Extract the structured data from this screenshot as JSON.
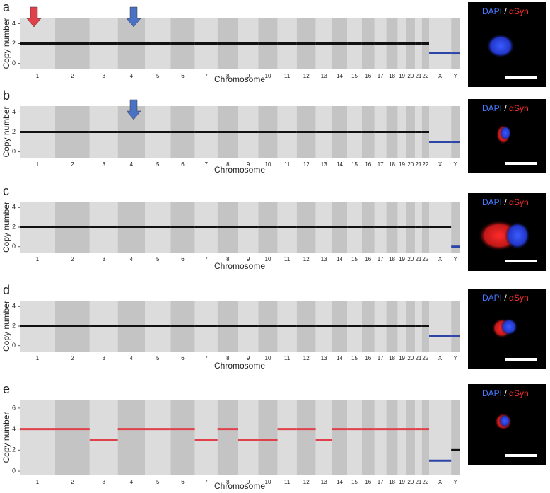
{
  "chart_data": [
    {
      "type": "segment",
      "label": "a",
      "ylabel": "Copy number",
      "xlabel": "Chromosome",
      "categories": [
        "1",
        "2",
        "3",
        "4",
        "5",
        "6",
        "7",
        "8",
        "9",
        "10",
        "11",
        "12",
        "13",
        "14",
        "15",
        "16",
        "17",
        "18",
        "19",
        "20",
        "21",
        "22",
        "X",
        "Y"
      ],
      "ylim": [
        -0.6,
        4.6
      ],
      "yticks": [
        0,
        2,
        4
      ],
      "series": [
        {
          "color": "#111111",
          "values": [
            2,
            2,
            2,
            2,
            2,
            2,
            2,
            2,
            2,
            2,
            2,
            2,
            2,
            2,
            2,
            2,
            2,
            2,
            2,
            2,
            2,
            2,
            null,
            null
          ]
        },
        {
          "color": "#2e45a8",
          "values": [
            null,
            null,
            null,
            null,
            null,
            null,
            null,
            null,
            null,
            null,
            null,
            null,
            null,
            null,
            null,
            null,
            null,
            null,
            null,
            null,
            null,
            null,
            1,
            1
          ]
        }
      ]
    },
    {
      "type": "segment",
      "label": "b",
      "ylabel": "Copy number",
      "xlabel": "Chromosome",
      "categories": [
        "1",
        "2",
        "3",
        "4",
        "5",
        "6",
        "7",
        "8",
        "9",
        "10",
        "11",
        "12",
        "13",
        "14",
        "15",
        "16",
        "17",
        "18",
        "19",
        "20",
        "21",
        "22",
        "X",
        "Y"
      ],
      "ylim": [
        -0.6,
        4.6
      ],
      "yticks": [
        0,
        2,
        4
      ],
      "series": [
        {
          "color": "#111111",
          "values": [
            2,
            2,
            2,
            2,
            2,
            2,
            2,
            2,
            2,
            2,
            2,
            2,
            2,
            2,
            2,
            2,
            2,
            2,
            2,
            2,
            2,
            2,
            null,
            null
          ]
        },
        {
          "color": "#2e45a8",
          "values": [
            null,
            null,
            null,
            null,
            null,
            null,
            null,
            null,
            null,
            null,
            null,
            null,
            null,
            null,
            null,
            null,
            null,
            null,
            null,
            null,
            null,
            null,
            1,
            1
          ]
        }
      ]
    },
    {
      "type": "segment",
      "label": "c",
      "ylabel": "Copy number",
      "xlabel": "Chromosome",
      "categories": [
        "1",
        "2",
        "3",
        "4",
        "5",
        "6",
        "7",
        "8",
        "9",
        "10",
        "11",
        "12",
        "13",
        "14",
        "15",
        "16",
        "17",
        "18",
        "19",
        "20",
        "21",
        "22",
        "X",
        "Y"
      ],
      "ylim": [
        -0.6,
        4.6
      ],
      "yticks": [
        0,
        2,
        4
      ],
      "series": [
        {
          "color": "#111111",
          "values": [
            2,
            2,
            2,
            2,
            2,
            2,
            2,
            2,
            2,
            2,
            2,
            2,
            2,
            2,
            2,
            2,
            2,
            2,
            2,
            2,
            2,
            2,
            2,
            null
          ]
        },
        {
          "color": "#2e45a8",
          "values": [
            null,
            null,
            null,
            null,
            null,
            null,
            null,
            null,
            null,
            null,
            null,
            null,
            null,
            null,
            null,
            null,
            null,
            null,
            null,
            null,
            null,
            null,
            null,
            0
          ]
        }
      ]
    },
    {
      "type": "segment",
      "label": "d",
      "ylabel": "Copy number",
      "xlabel": "Chromosome",
      "categories": [
        "1",
        "2",
        "3",
        "4",
        "5",
        "6",
        "7",
        "8",
        "9",
        "10",
        "11",
        "12",
        "13",
        "14",
        "15",
        "16",
        "17",
        "18",
        "19",
        "20",
        "21",
        "22",
        "X",
        "Y"
      ],
      "ylim": [
        -0.6,
        4.6
      ],
      "yticks": [
        0,
        2,
        4
      ],
      "series": [
        {
          "color": "#111111",
          "values": [
            2,
            2,
            2,
            2,
            2,
            2,
            2,
            2,
            2,
            2,
            2,
            2,
            2,
            2,
            2,
            2,
            2,
            2,
            2,
            2,
            2,
            2,
            null,
            null
          ]
        },
        {
          "color": "#2e45a8",
          "values": [
            null,
            null,
            null,
            null,
            null,
            null,
            null,
            null,
            null,
            null,
            null,
            null,
            null,
            null,
            null,
            null,
            null,
            null,
            null,
            null,
            null,
            null,
            1,
            1
          ]
        }
      ]
    },
    {
      "type": "segment",
      "label": "e",
      "ylabel": "Copy number",
      "xlabel": "Chromosome",
      "categories": [
        "1",
        "2",
        "3",
        "4",
        "5",
        "6",
        "7",
        "8",
        "9",
        "10",
        "11",
        "12",
        "13",
        "14",
        "15",
        "16",
        "17",
        "18",
        "19",
        "20",
        "21",
        "22",
        "X",
        "Y"
      ],
      "ylim": [
        -0.4,
        6.8
      ],
      "yticks": [
        0,
        2,
        4,
        6
      ],
      "series": [
        {
          "color": "#e0404a",
          "values": [
            4,
            4,
            3,
            4,
            4,
            4,
            3,
            4,
            3,
            3,
            4,
            4,
            3,
            4,
            4,
            4,
            4,
            4,
            4,
            4,
            4,
            4,
            null,
            null
          ]
        },
        {
          "color": "#2e45a8",
          "values": [
            null,
            null,
            null,
            null,
            null,
            null,
            null,
            null,
            null,
            null,
            null,
            null,
            null,
            null,
            null,
            null,
            null,
            null,
            null,
            null,
            null,
            null,
            1,
            null
          ]
        },
        {
          "color": "#111111",
          "values": [
            null,
            null,
            null,
            null,
            null,
            null,
            null,
            null,
            null,
            null,
            null,
            null,
            null,
            null,
            null,
            null,
            null,
            null,
            null,
            null,
            null,
            null,
            null,
            2
          ]
        }
      ]
    }
  ],
  "images": [
    {
      "dapi": "DAPI",
      "sep": "/",
      "syn": "αSyn"
    },
    {
      "dapi": "DAPI",
      "sep": "/",
      "syn": "αSyn"
    },
    {
      "dapi": "DAPI",
      "sep": "/",
      "syn": "αSyn"
    },
    {
      "dapi": "DAPI",
      "sep": "/",
      "syn": "αSyn"
    },
    {
      "dapi": "DAPI",
      "sep": "/",
      "syn": "αSyn"
    }
  ]
}
